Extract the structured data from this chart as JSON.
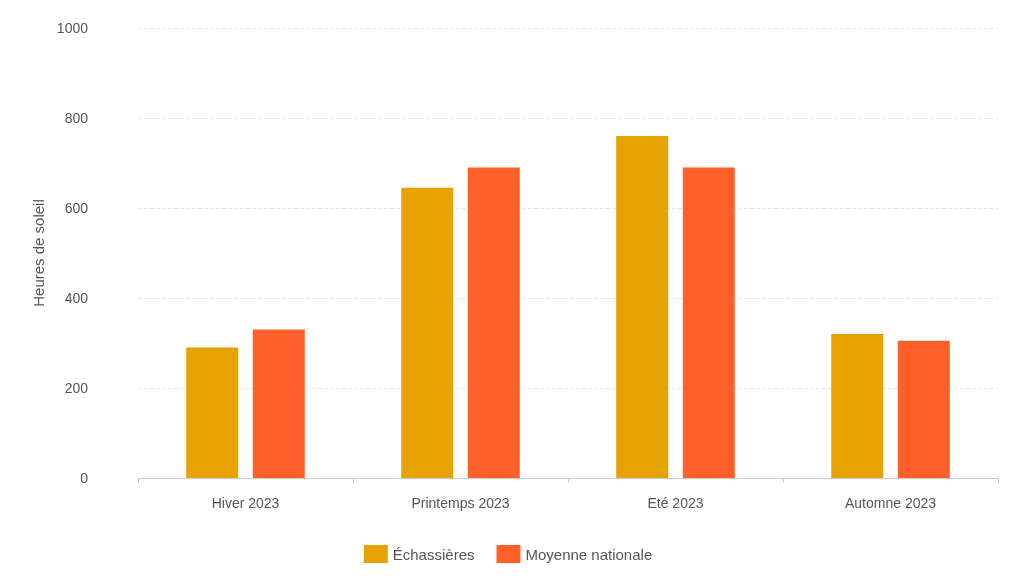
{
  "chart_data": {
    "type": "bar",
    "ylabel": "Heures de soleil",
    "categories": [
      "Hiver 2023",
      "Printemps 2023",
      "Eté 2023",
      "Automne 2023"
    ],
    "series": [
      {
        "name": "Échassières",
        "color": "#e6a300",
        "values": [
          290,
          645,
          760,
          320
        ]
      },
      {
        "name": "Moyenne nationale",
        "color": "#ff6029",
        "values": [
          330,
          690,
          690,
          305
        ]
      }
    ],
    "ylim": [
      0,
      1000
    ],
    "yticks": [
      0,
      200,
      400,
      600,
      800,
      1000
    ],
    "grid": "y",
    "legend": "bottom"
  }
}
